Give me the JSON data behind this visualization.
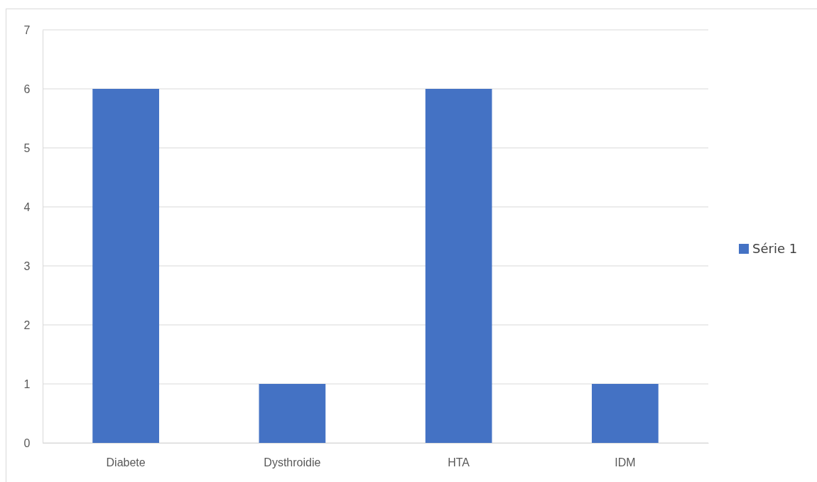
{
  "chart_data": {
    "type": "bar",
    "categories": [
      "Diabete",
      "Dysthroidie",
      "HTA",
      "IDM"
    ],
    "series": [
      {
        "name": "Série 1",
        "color": "#4472c4",
        "values": [
          6,
          1,
          6,
          1
        ]
      }
    ],
    "ylim": [
      0,
      7
    ],
    "yticks": [
      0,
      1,
      2,
      3,
      4,
      5,
      6,
      7
    ],
    "grid": "y",
    "legend": "right"
  }
}
